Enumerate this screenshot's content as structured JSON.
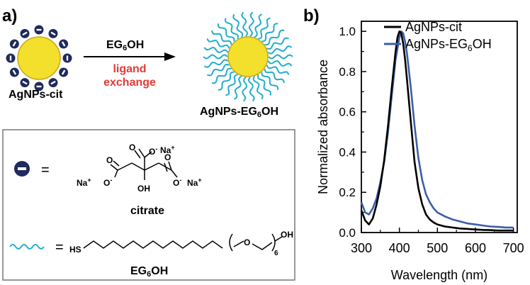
{
  "panel_a": {
    "label": "a)",
    "reagent_main": "EG",
    "reagent_sub": "6",
    "reagent_tail": "OH",
    "process_line1": "ligand",
    "process_line2": "exchange",
    "start_label": "AgNPs-cit",
    "product_main": "AgNPs-EG",
    "product_sub": "6",
    "product_tail": "OH",
    "legend": {
      "equals": "=",
      "citrate_name": "citrate",
      "na_top": "Na",
      "na_left": "Na",
      "na_right": "Na",
      "o_top": "O",
      "o_left": "O",
      "o_right": "O",
      "oh": "OH",
      "o_top_minus": "O",
      "charge_plus": "+",
      "charge_minus": "-",
      "hs": "HS",
      "peg_o": "O",
      "peg_sub": "6",
      "peg_oh": "OH",
      "peg_name_main": "EG",
      "peg_name_sub": "6",
      "peg_name_tail": "OH"
    },
    "colors": {
      "particle": "#f2e02c",
      "citrate": "#1f2a5e",
      "peg": "#22aecc",
      "process_text": "#e53935"
    }
  },
  "panel_b": {
    "label": "b)"
  },
  "chart_data": {
    "type": "line",
    "xlabel": "Wavelength (nm)",
    "ylabel": "Normalized absorbance",
    "xlim": [
      300,
      710
    ],
    "ylim": [
      0,
      1.05
    ],
    "x_ticks": [
      300,
      400,
      500,
      600,
      700
    ],
    "y_ticks": [
      "0.0",
      "0.2",
      "0.4",
      "0.6",
      "0.8",
      "1.0"
    ],
    "y_tick_values": [
      0,
      0.2,
      0.4,
      0.6,
      0.8,
      1.0
    ],
    "legend_placement": "top-right",
    "series": [
      {
        "name": "AgNPs-cit",
        "color": "#000000",
        "x": [
          300,
          310,
          320,
          330,
          340,
          350,
          360,
          370,
          380,
          390,
          395,
          400,
          405,
          410,
          415,
          420,
          430,
          440,
          450,
          460,
          470,
          480,
          490,
          500,
          520,
          540,
          560,
          580,
          600,
          620,
          640,
          660,
          680,
          700
        ],
        "y": [
          0.11,
          0.06,
          0.04,
          0.07,
          0.14,
          0.23,
          0.36,
          0.53,
          0.72,
          0.9,
          0.97,
          1.0,
          0.99,
          0.94,
          0.86,
          0.76,
          0.55,
          0.35,
          0.22,
          0.14,
          0.09,
          0.065,
          0.05,
          0.04,
          0.03,
          0.025,
          0.02,
          0.018,
          0.015,
          0.013,
          0.012,
          0.01,
          0.01,
          0.01
        ]
      },
      {
        "name": "AgNPs-EG",
        "name_sub": "6",
        "name_tail": "OH",
        "color": "#3a5ea8",
        "x": [
          300,
          310,
          320,
          330,
          340,
          350,
          360,
          370,
          380,
          390,
          400,
          405,
          410,
          415,
          420,
          430,
          440,
          450,
          460,
          470,
          480,
          490,
          500,
          520,
          540,
          560,
          580,
          600,
          620,
          640,
          660,
          680,
          700
        ],
        "y": [
          0.15,
          0.1,
          0.09,
          0.12,
          0.17,
          0.25,
          0.35,
          0.5,
          0.68,
          0.86,
          0.97,
          1.0,
          0.99,
          0.95,
          0.89,
          0.72,
          0.53,
          0.37,
          0.26,
          0.19,
          0.15,
          0.12,
          0.1,
          0.08,
          0.065,
          0.055,
          0.045,
          0.04,
          0.035,
          0.03,
          0.028,
          0.025,
          0.025
        ]
      }
    ]
  }
}
